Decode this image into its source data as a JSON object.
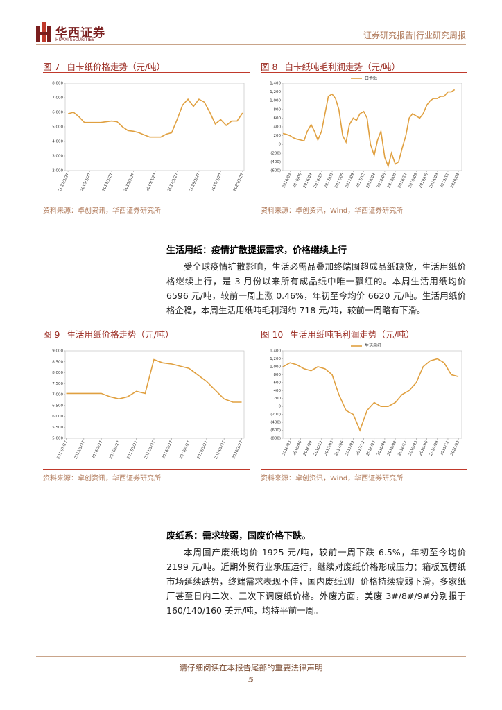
{
  "header": {
    "logo_cn": "华西证券",
    "logo_en": "HUAXI SECURITIES",
    "report_type": "证券研究报告|行业研究周报"
  },
  "figures": [
    {
      "label": "图 7",
      "title": "白卡纸价格走势（元/吨）",
      "source": "资料来源：卓创资讯，华西证券研究所",
      "chart": {
        "type": "line",
        "xlim": [
          2012.1,
          2020.3
        ],
        "ylim": [
          2000,
          8000
        ],
        "yticks": [
          {
            "value": 2000,
            "label": "2,000"
          },
          {
            "value": 3000,
            "label": "3,000"
          },
          {
            "value": 4000,
            "label": "4,000"
          },
          {
            "value": 5000,
            "label": "5,000"
          },
          {
            "value": 6000,
            "label": "6,000"
          },
          {
            "value": 7000,
            "label": "7,000"
          },
          {
            "value": 8000,
            "label": "8,000"
          }
        ],
        "xticks": [
          {
            "value": 2012.23,
            "label": "2012/3/27"
          },
          {
            "value": 2013.23,
            "label": "2013/3/27"
          },
          {
            "value": 2014.23,
            "label": "2014/3/27"
          },
          {
            "value": 2015.23,
            "label": "2015/3/27"
          },
          {
            "value": 2016.23,
            "label": "2016/3/27"
          },
          {
            "value": 2017.23,
            "label": "2017/3/27"
          },
          {
            "value": 2018.23,
            "label": "2018/3/27"
          },
          {
            "value": 2019.23,
            "label": "2019/3/27"
          },
          {
            "value": 2020.23,
            "label": "2020/3/27"
          }
        ],
        "x": [
          2012.23,
          2012.48,
          2012.73,
          2012.98,
          2013.23,
          2013.48,
          2013.73,
          2013.98,
          2014.23,
          2014.48,
          2014.73,
          2014.98,
          2015.23,
          2015.48,
          2015.73,
          2015.98,
          2016.23,
          2016.48,
          2016.73,
          2016.98,
          2017.23,
          2017.48,
          2017.73,
          2017.98,
          2018.23,
          2018.48,
          2018.73,
          2018.98,
          2019.23,
          2019.48,
          2019.73,
          2019.98,
          2020.23
        ],
        "series": [
          {
            "color": "#e0a040",
            "values": [
              5900,
              6000,
              5700,
              5300,
              5300,
              5300,
              5300,
              5350,
              5400,
              5350,
              5000,
              4750,
              4700,
              4600,
              4450,
              4300,
              4300,
              4300,
              4500,
              4600,
              5500,
              6500,
              6900,
              6400,
              6900,
              6700,
              6000,
              5200,
              5500,
              5100,
              5400,
              5400,
              5950
            ]
          }
        ]
      }
    },
    {
      "label": "图 8",
      "title": "白卡纸吨毛利润走势（元/吨）",
      "source": "资料来源：卓创资讯，Wind，华西证券研究所",
      "chart": {
        "type": "line",
        "xlim": [
          2016.0,
          2020.25
        ],
        "ylim": [
          -600,
          1400
        ],
        "yticks": [
          {
            "value": -600,
            "label": "(600)"
          },
          {
            "value": -400,
            "label": "(400)"
          },
          {
            "value": -200,
            "label": "(200)"
          },
          0,
          200,
          400,
          600,
          800,
          {
            "value": 1000,
            "label": "1,000"
          },
          {
            "value": 1200,
            "label": "1,200"
          },
          {
            "value": 1400,
            "label": "1,400"
          }
        ],
        "xticks": [
          {
            "value": 2016.17,
            "label": "2016/03"
          },
          {
            "value": 2016.42,
            "label": "2016/06"
          },
          {
            "value": 2016.67,
            "label": "2016/09"
          },
          {
            "value": 2016.92,
            "label": "2016/12"
          },
          {
            "value": 2017.17,
            "label": "2017/03"
          },
          {
            "value": 2017.42,
            "label": "2017/06"
          },
          {
            "value": 2017.67,
            "label": "2017/09"
          },
          {
            "value": 2017.92,
            "label": "2017/12"
          },
          {
            "value": 2018.17,
            "label": "2018/03"
          },
          {
            "value": 2018.42,
            "label": "2018/06"
          },
          {
            "value": 2018.67,
            "label": "2018/09"
          },
          {
            "value": 2018.92,
            "label": "2018/12"
          },
          {
            "value": 2019.17,
            "label": "2019/03"
          },
          {
            "value": 2019.42,
            "label": "2019/06"
          },
          {
            "value": 2019.67,
            "label": "2019/09"
          },
          {
            "value": 2019.92,
            "label": "2019/12"
          },
          {
            "value": 2020.17,
            "label": "2020/03"
          }
        ],
        "x": [
          2016.0,
          2016.08,
          2016.17,
          2016.25,
          2016.33,
          2016.42,
          2016.5,
          2016.58,
          2016.67,
          2016.75,
          2016.83,
          2016.92,
          2017.0,
          2017.08,
          2017.17,
          2017.25,
          2017.33,
          2017.42,
          2017.5,
          2017.58,
          2017.67,
          2017.75,
          2017.83,
          2017.92,
          2018.0,
          2018.08,
          2018.17,
          2018.25,
          2018.33,
          2018.42,
          2018.5,
          2018.58,
          2018.67,
          2018.75,
          2018.83,
          2018.92,
          2019.0,
          2019.08,
          2019.17,
          2019.25,
          2019.33,
          2019.42,
          2019.5,
          2019.58,
          2019.67,
          2019.75,
          2019.83,
          2019.92,
          2020.0,
          2020.08
        ],
        "series": [
          {
            "name": "白卡纸",
            "color": "#e0a040",
            "values": [
              250,
              230,
              200,
              150,
              120,
              100,
              80,
              300,
              450,
              300,
              100,
              300,
              700,
              1100,
              1150,
              1050,
              800,
              200,
              50,
              450,
              600,
              550,
              700,
              750,
              600,
              0,
              -250,
              100,
              300,
              -300,
              -500,
              -200,
              -450,
              -400,
              -100,
              200,
              600,
              700,
              650,
              600,
              700,
              900,
              1000,
              1050,
              1050,
              1100,
              1100,
              1200,
              1200,
              1250
            ]
          }
        ]
      }
    },
    {
      "label": "图 9",
      "title": "生活用纸价格走势（元/吨）",
      "source": "资料来源：卓创资讯，华西证券研究所",
      "chart": {
        "type": "line",
        "xlim": [
          2015.2,
          2020.3
        ],
        "ylim": [
          5000,
          9000
        ],
        "yticks": [
          {
            "value": 5000,
            "label": "5,000"
          },
          {
            "value": 5500,
            "label": "5,500"
          },
          {
            "value": 6000,
            "label": "6,000"
          },
          {
            "value": 6500,
            "label": "6,500"
          },
          {
            "value": 7000,
            "label": "7,000"
          },
          {
            "value": 7500,
            "label": "7,500"
          },
          {
            "value": 8000,
            "label": "8,000"
          },
          {
            "value": 8500,
            "label": "8,500"
          },
          {
            "value": 9000,
            "label": "9,000"
          }
        ],
        "xticks": [
          {
            "value": 2015.23,
            "label": "2015/3/27"
          },
          {
            "value": 2015.73,
            "label": "2015/9/27"
          },
          {
            "value": 2016.23,
            "label": "2016/3/27"
          },
          {
            "value": 2016.73,
            "label": "2016/9/27"
          },
          {
            "value": 2017.23,
            "label": "2017/3/27"
          },
          {
            "value": 2017.73,
            "label": "2017/9/27"
          },
          {
            "value": 2018.23,
            "label": "2018/3/27"
          },
          {
            "value": 2018.73,
            "label": "2018/9/27"
          },
          {
            "value": 2019.23,
            "label": "2019/3/27"
          },
          {
            "value": 2019.73,
            "label": "2019/9/27"
          },
          {
            "value": 2020.23,
            "label": "2020/3/27"
          }
        ],
        "x": [
          2015.23,
          2015.48,
          2015.73,
          2015.98,
          2016.23,
          2016.48,
          2016.73,
          2016.98,
          2017.23,
          2017.48,
          2017.73,
          2017.98,
          2018.23,
          2018.48,
          2018.73,
          2018.98,
          2019.23,
          2019.48,
          2019.73,
          2019.98,
          2020.23
        ],
        "series": [
          {
            "color": "#e0a040",
            "values": [
              7050,
              7050,
              7050,
              7050,
              7050,
              6900,
              6800,
              6900,
              7150,
              7050,
              8600,
              8450,
              8400,
              8300,
              8200,
              7900,
              7600,
              7200,
              6800,
              6650,
              6650
            ]
          }
        ]
      }
    },
    {
      "label": "图 10",
      "title": "生活用纸吨毛利润走势（元/吨）",
      "source": "资料来源：卓创资讯，Wind，华西证券研究所",
      "chart": {
        "type": "line",
        "xlim": [
          2016.0,
          2020.25
        ],
        "ylim": [
          -800,
          1400
        ],
        "yticks": [
          {
            "value": -800,
            "label": "(800)"
          },
          {
            "value": -600,
            "label": "(600)"
          },
          {
            "value": -400,
            "label": "(400)"
          },
          {
            "value": -200,
            "label": "(200)"
          },
          0,
          200,
          400,
          600,
          800,
          {
            "value": 1000,
            "label": "1,000"
          },
          {
            "value": 1200,
            "label": "1,200"
          },
          {
            "value": 1400,
            "label": "1,400"
          }
        ],
        "xticks": [
          {
            "value": 2016.17,
            "label": "2016/03"
          },
          {
            "value": 2016.42,
            "label": "2016/06"
          },
          {
            "value": 2016.67,
            "label": "2016/09"
          },
          {
            "value": 2016.92,
            "label": "2016/12"
          },
          {
            "value": 2017.17,
            "label": "2017/03"
          },
          {
            "value": 2017.42,
            "label": "2017/06"
          },
          {
            "value": 2017.67,
            "label": "2017/09"
          },
          {
            "value": 2017.92,
            "label": "2017/12"
          },
          {
            "value": 2018.17,
            "label": "2018/03"
          },
          {
            "value": 2018.42,
            "label": "2018/06"
          },
          {
            "value": 2018.67,
            "label": "2018/09"
          },
          {
            "value": 2018.92,
            "label": "2018/12"
          },
          {
            "value": 2019.17,
            "label": "2019/03"
          },
          {
            "value": 2019.42,
            "label": "2019/06"
          },
          {
            "value": 2019.67,
            "label": "2019/09"
          },
          {
            "value": 2019.92,
            "label": "2019/12"
          },
          {
            "value": 2020.17,
            "label": "2020/03"
          }
        ],
        "x": [
          2016.0,
          2016.17,
          2016.33,
          2016.5,
          2016.67,
          2016.83,
          2017.0,
          2017.17,
          2017.33,
          2017.5,
          2017.67,
          2017.83,
          2018.0,
          2018.17,
          2018.33,
          2018.5,
          2018.67,
          2018.83,
          2019.0,
          2019.17,
          2019.33,
          2019.5,
          2019.67,
          2019.83,
          2020.0,
          2020.17
        ],
        "series": [
          {
            "name": "生活用纸",
            "color": "#e0a040",
            "values": [
              1000,
              1100,
              1050,
              950,
              900,
              1000,
              950,
              800,
              300,
              -100,
              -200,
              -600,
              -100,
              100,
              0,
              0,
              100,
              300,
              400,
              600,
              1000,
              1150,
              1200,
              1100,
              800,
              750
            ]
          }
        ]
      }
    }
  ],
  "sections": [
    {
      "heading": "生活用纸：疫情扩散提振需求，价格继续上行",
      "text": "受全球疫情扩散影响，生活必需品叠加终端囤超成品纸缺货，生活用纸价格继续上行，是 3 月份以来所有成品纸中唯一飘红的。本周生活用纸均价 6596 元/吨，较前一周上涨 0.46%，年初至今均价 6620 元/吨。生活用纸价格企稳，本周生活用纸吨毛利润约 718 元/吨，较前一周略有下滑。"
    },
    {
      "heading": "废纸系：需求较弱，国废价格下跌。",
      "text": "本周国产废纸均价 1925 元/吨，较前一周下跌 6.5%，年初至今均价 2199 元/吨。近期外贸行业承压运行，继续对废纸价格形成压力；箱板瓦楞纸市场延续跌势，终端需求表现不佳，国内废纸到厂价格持续疲弱下滑，多家纸厂甚至日内二次、三次下调废纸价格。外废方面，美废 3#/8#/9#分别报于 160/140/160 美元/吨，均持平前一周。"
    }
  ],
  "footer": {
    "notice": "请仔细阅读在本报告尾部的重要法律声明",
    "page": "5"
  }
}
